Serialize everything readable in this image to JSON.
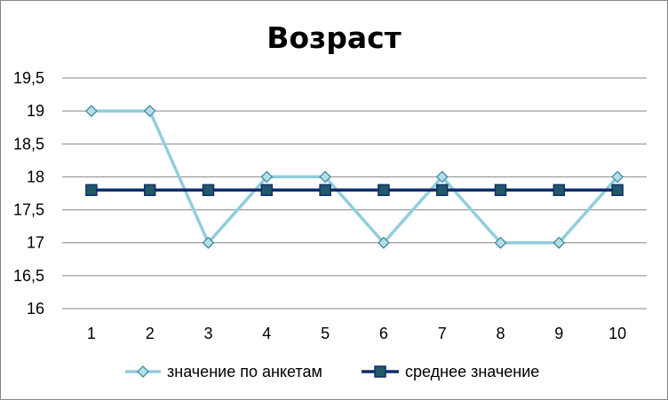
{
  "chart_data": {
    "type": "line",
    "title": "Возраст",
    "xlabel": "",
    "ylabel": "",
    "categories": [
      "1",
      "2",
      "3",
      "4",
      "5",
      "6",
      "7",
      "8",
      "9",
      "10"
    ],
    "ylim": [
      16,
      19.5
    ],
    "ystep": 0.5,
    "ytick_labels": [
      "16",
      "16,5",
      "17",
      "17,5",
      "18",
      "18,5",
      "19",
      "19,5"
    ],
    "grid": true,
    "legend_position": "bottom",
    "series": [
      {
        "name": "значение по анкетам",
        "values": [
          19,
          19,
          17,
          18,
          18,
          17,
          18,
          17,
          17,
          18
        ],
        "line_color": "#92CDDC",
        "marker": "diamond",
        "marker_fill": "#B7DEE8",
        "marker_stroke": "#31859C"
      },
      {
        "name": "среднее значение",
        "values": [
          17.8,
          17.8,
          17.8,
          17.8,
          17.8,
          17.8,
          17.8,
          17.8,
          17.8,
          17.8
        ],
        "line_color": "#0F2D69",
        "marker": "square",
        "marker_fill": "#215968",
        "marker_stroke": "#0F2D69"
      }
    ]
  }
}
